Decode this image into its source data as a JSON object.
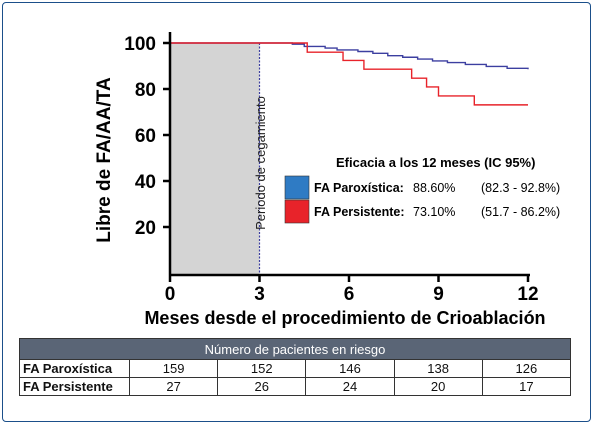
{
  "chart_data": {
    "type": "line",
    "xlabel": "Meses desde el procedimiento de Crioablación",
    "ylabel": "Libre de FA/AA/TA",
    "xlim": [
      0,
      12
    ],
    "ylim": [
      0,
      100
    ],
    "x_ticks": [
      "0",
      "3",
      "6",
      "9",
      "12"
    ],
    "y_ticks": [
      "20",
      "40",
      "60",
      "80",
      "100"
    ],
    "blanking_period": {
      "label": "Periodo de cegamiento",
      "x_start": 0,
      "x_end": 3
    },
    "series": [
      {
        "name": "FA Paroxística",
        "color": "#3c3fa0",
        "points": [
          [
            0,
            100
          ],
          [
            3,
            100
          ],
          [
            4.1,
            99.5
          ],
          [
            4.5,
            98.5
          ],
          [
            5.2,
            97.8
          ],
          [
            5.6,
            97
          ],
          [
            6.3,
            96.3
          ],
          [
            6.8,
            95.5
          ],
          [
            7.3,
            94.5
          ],
          [
            7.8,
            93.8
          ],
          [
            8.3,
            93
          ],
          [
            8.8,
            92.2
          ],
          [
            9.3,
            91.5
          ],
          [
            9.9,
            90.7
          ],
          [
            10.6,
            89.8
          ],
          [
            11.3,
            89
          ],
          [
            12,
            88.6
          ]
        ]
      },
      {
        "name": "FA Persistente",
        "color": "#e8232a",
        "points": [
          [
            0,
            100
          ],
          [
            3,
            100
          ],
          [
            4.6,
            96
          ],
          [
            5.8,
            92.4
          ],
          [
            6.5,
            88.6
          ],
          [
            8.1,
            84.7
          ],
          [
            8.6,
            80.9
          ],
          [
            9,
            77
          ],
          [
            9.8,
            77
          ],
          [
            10.2,
            73.1
          ],
          [
            11.3,
            73.1
          ],
          [
            12,
            73.1
          ]
        ]
      }
    ],
    "legend": {
      "title": "Eficacia a los 12 meses (IC 95%)",
      "placement": "right",
      "entries": [
        {
          "name": "FA Paroxística:",
          "value": "88.60%",
          "ci": "(82.3 - 92.8%)",
          "color": "#2f7bc4"
        },
        {
          "name": "FA Persistente:",
          "value": "73.10%",
          "ci": "(51.7 - 86.2%)",
          "color": "#e8232a"
        }
      ]
    }
  },
  "risk_table": {
    "title": "Número de pacientes en riesgo",
    "rows": [
      {
        "label": "FA Paroxística",
        "values": [
          "159",
          "152",
          "146",
          "138",
          "126"
        ]
      },
      {
        "label": "FA Persistente",
        "values": [
          "27",
          "26",
          "24",
          "20",
          "17"
        ]
      }
    ]
  }
}
